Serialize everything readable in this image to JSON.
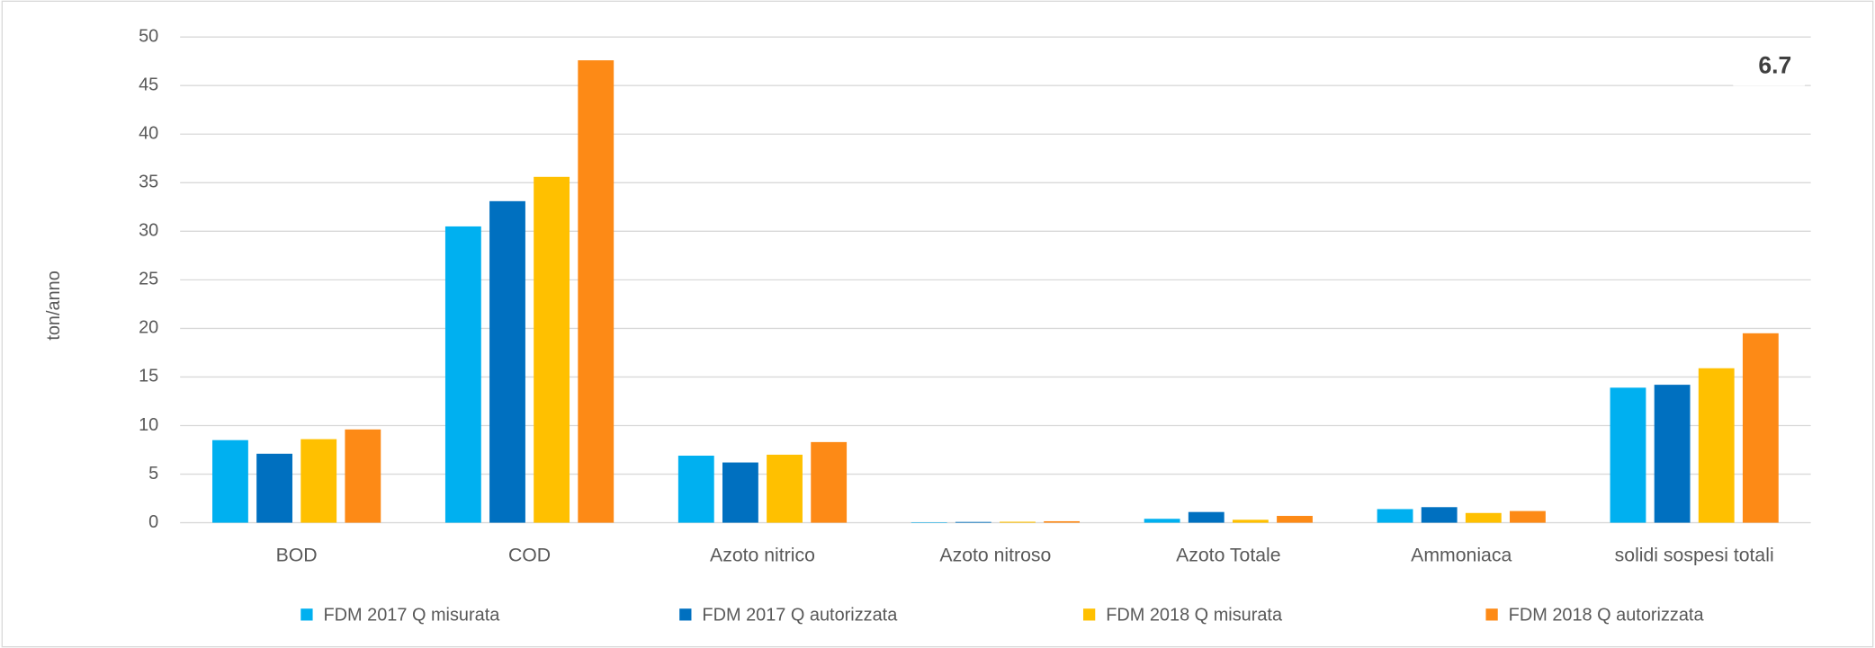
{
  "chart_data": {
    "type": "bar",
    "y_label": "ton/anno",
    "annotation": "6.7",
    "categories": [
      "BOD",
      "COD",
      "Azoto nitrico",
      "Azoto nitroso",
      "Azoto Totale",
      "Ammoniaca",
      "solidi sospesi totali"
    ],
    "series": [
      {
        "name": "FDM 2017 Q misurata",
        "color": "#00b0f0",
        "values": [
          8.5,
          30.5,
          6.9,
          0.05,
          0.4,
          1.4,
          13.9
        ]
      },
      {
        "name": "FDM 2017 Q autorizzata",
        "color": "#0070c0",
        "values": [
          7.1,
          33.1,
          6.2,
          0.08,
          1.1,
          1.6,
          14.2
        ]
      },
      {
        "name": "FDM 2018 Q misurata",
        "color": "#ffc000",
        "values": [
          8.6,
          35.6,
          7.0,
          0.1,
          0.3,
          1.0,
          15.9
        ]
      },
      {
        "name": "FDM 2018 Q autorizzata",
        "color": "#fd8a16",
        "values": [
          9.6,
          47.6,
          8.3,
          0.15,
          0.7,
          1.2,
          19.5
        ]
      }
    ],
    "ylim": [
      0,
      50
    ],
    "yticks": [
      0,
      5,
      10,
      15,
      20,
      25,
      30,
      35,
      40,
      45,
      50
    ],
    "grid": true,
    "legend": "bottom"
  }
}
